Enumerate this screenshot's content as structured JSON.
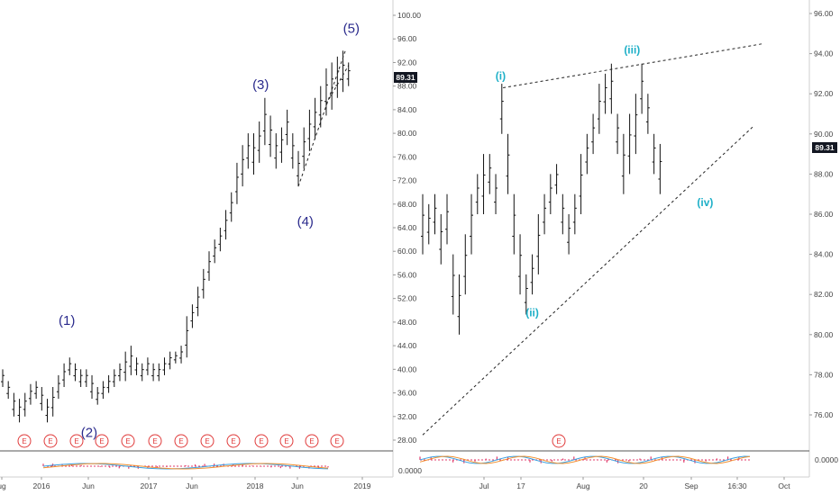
{
  "chart_data": [
    {
      "type": "bar",
      "x_ticks": [
        "ug",
        "2016",
        "Jun",
        "2017",
        "Jun",
        "2018",
        "Jun",
        "2019"
      ],
      "y_ticks": [
        "28.00",
        "32.00",
        "36.00",
        "40.00",
        "44.00",
        "48.00",
        "52.00",
        "56.00",
        "60.00",
        "64.00",
        "68.00",
        "72.00",
        "76.00",
        "80.00",
        "84.00",
        "88.00",
        "92.00",
        "96.00",
        "100.00"
      ],
      "ylim": [
        24.5,
        102
      ],
      "last_price": "89.31",
      "indicator_tick": "0.0000",
      "earnings_marker": "E",
      "earnings_count": 13,
      "wave_labels": [
        {
          "text": "(1)",
          "x": 4.6,
          "y": 47.5
        },
        {
          "text": "(2)",
          "x": 6.2,
          "y": 28.5
        },
        {
          "text": "(3)",
          "x": 18.5,
          "y": 87.5
        },
        {
          "text": "(4)",
          "x": 21.7,
          "y": 64.3
        },
        {
          "text": "(5)",
          "x": 25.0,
          "y": 97.0
        }
      ],
      "trendlines": [
        {
          "x": [
            21.2,
            24.6
          ],
          "y": [
            71.0,
            94.2
          ]
        },
        {
          "x": [
            23.2,
            24.8
          ],
          "y": [
            85.0,
            91.5
          ]
        }
      ],
      "bars": [
        [
          0,
          37,
          40
        ],
        [
          0.4,
          35,
          38
        ],
        [
          0.8,
          32,
          36
        ],
        [
          1.2,
          31,
          35
        ],
        [
          1.6,
          32,
          36
        ],
        [
          2.0,
          34,
          37.5
        ],
        [
          2.4,
          35,
          38
        ],
        [
          2.8,
          33,
          37
        ],
        [
          3.2,
          31,
          35
        ],
        [
          3.6,
          32,
          37
        ],
        [
          4.0,
          35,
          39
        ],
        [
          4.4,
          37,
          41
        ],
        [
          4.8,
          39,
          42
        ],
        [
          5.2,
          38,
          41
        ],
        [
          5.6,
          37,
          40
        ],
        [
          6.0,
          37,
          40
        ],
        [
          6.4,
          35,
          39
        ],
        [
          6.8,
          34,
          37
        ],
        [
          7.2,
          35,
          38
        ],
        [
          7.6,
          36,
          39
        ],
        [
          8.0,
          37,
          40
        ],
        [
          8.4,
          38,
          41
        ],
        [
          8.8,
          38,
          43
        ],
        [
          9.2,
          39,
          44
        ],
        [
          9.6,
          39,
          42
        ],
        [
          10.0,
          38,
          41
        ],
        [
          10.4,
          39,
          42
        ],
        [
          10.8,
          38,
          41
        ],
        [
          11.2,
          38,
          41
        ],
        [
          11.6,
          39,
          42
        ],
        [
          12.0,
          40,
          43
        ],
        [
          12.4,
          41,
          43
        ],
        [
          12.8,
          41,
          44
        ],
        [
          13.2,
          42,
          49
        ],
        [
          13.6,
          47,
          51
        ],
        [
          14.0,
          49,
          54
        ],
        [
          14.4,
          52,
          57
        ],
        [
          14.8,
          55,
          60
        ],
        [
          15.2,
          58,
          62
        ],
        [
          15.6,
          60,
          64
        ],
        [
          16.0,
          62,
          67
        ],
        [
          16.4,
          65,
          70
        ],
        [
          16.8,
          68,
          75
        ],
        [
          17.2,
          71,
          78
        ],
        [
          17.6,
          74,
          80
        ],
        [
          18.0,
          73,
          80
        ],
        [
          18.4,
          75,
          82
        ],
        [
          18.8,
          78,
          86
        ],
        [
          19.2,
          76,
          83
        ],
        [
          19.6,
          74,
          80
        ],
        [
          20.0,
          75,
          81
        ],
        [
          20.4,
          78,
          84
        ],
        [
          20.8,
          74,
          80
        ],
        [
          21.2,
          71,
          77
        ],
        [
          21.6,
          74,
          81
        ],
        [
          22.0,
          77,
          84
        ],
        [
          22.4,
          79,
          86
        ],
        [
          22.8,
          81,
          88
        ],
        [
          23.2,
          83,
          91
        ],
        [
          23.6,
          84,
          92
        ],
        [
          24.0,
          86,
          93
        ],
        [
          24.4,
          87,
          94
        ],
        [
          24.8,
          88,
          92
        ]
      ]
    },
    {
      "type": "bar",
      "x_ticks": [
        "Jul",
        "17",
        "Aug",
        "20",
        "Sep",
        "16:30",
        "Oct"
      ],
      "y_ticks": [
        "76.00",
        "78.00",
        "80.00",
        "82.00",
        "84.00",
        "86.00",
        "88.00",
        "90.00",
        "92.00",
        "94.00",
        "96.00"
      ],
      "ylim": [
        74.5,
        96.8
      ],
      "last_price": "89.31",
      "indicator_tick": "0.0000",
      "earnings_marker": "E",
      "wave_labels": [
        {
          "text": "(i)",
          "x": 3.2,
          "y": 92.7
        },
        {
          "text": "(ii)",
          "x": 4.5,
          "y": 80.9
        },
        {
          "text": "(iii)",
          "x": 8.6,
          "y": 94.0
        },
        {
          "text": "(iv)",
          "x": 11.6,
          "y": 86.4
        }
      ],
      "trendlines": [
        {
          "x": [
            3.3,
            14.0
          ],
          "y": [
            92.3,
            94.5
          ]
        },
        {
          "x": [
            0.0,
            13.6
          ],
          "y": [
            75.0,
            90.4
          ]
        }
      ],
      "bars": [
        [
          0.0,
          84,
          87
        ],
        [
          0.25,
          84.5,
          86.5
        ],
        [
          0.5,
          85,
          87
        ],
        [
          0.75,
          83.5,
          86
        ],
        [
          1.0,
          84.5,
          87
        ],
        [
          1.25,
          81,
          84
        ],
        [
          1.5,
          80,
          83
        ],
        [
          1.75,
          82,
          85
        ],
        [
          2.0,
          84,
          87
        ],
        [
          2.25,
          86,
          88
        ],
        [
          2.5,
          86,
          89
        ],
        [
          2.75,
          87,
          89
        ],
        [
          3.0,
          86,
          88
        ],
        [
          3.25,
          90,
          92.5
        ],
        [
          3.5,
          87,
          90
        ],
        [
          3.75,
          84,
          87
        ],
        [
          4.0,
          82,
          85
        ],
        [
          4.25,
          81,
          83
        ],
        [
          4.5,
          82,
          84
        ],
        [
          4.75,
          83,
          86
        ],
        [
          5.0,
          85,
          87
        ],
        [
          5.25,
          86,
          88
        ],
        [
          5.5,
          87,
          88.5
        ],
        [
          5.75,
          85,
          87
        ],
        [
          6.0,
          84,
          86
        ],
        [
          6.25,
          85,
          87
        ],
        [
          6.5,
          86,
          89
        ],
        [
          6.75,
          88,
          90
        ],
        [
          7.0,
          89,
          91
        ],
        [
          7.25,
          90,
          92.5
        ],
        [
          7.5,
          91,
          93
        ],
        [
          7.75,
          91,
          93.5
        ],
        [
          8.0,
          89,
          91
        ],
        [
          8.25,
          87,
          90
        ],
        [
          8.5,
          88,
          91
        ],
        [
          8.75,
          89,
          92
        ],
        [
          9.0,
          91,
          93.5
        ],
        [
          9.25,
          90,
          92
        ],
        [
          9.5,
          88,
          90
        ],
        [
          9.75,
          87,
          89.5
        ]
      ]
    }
  ]
}
